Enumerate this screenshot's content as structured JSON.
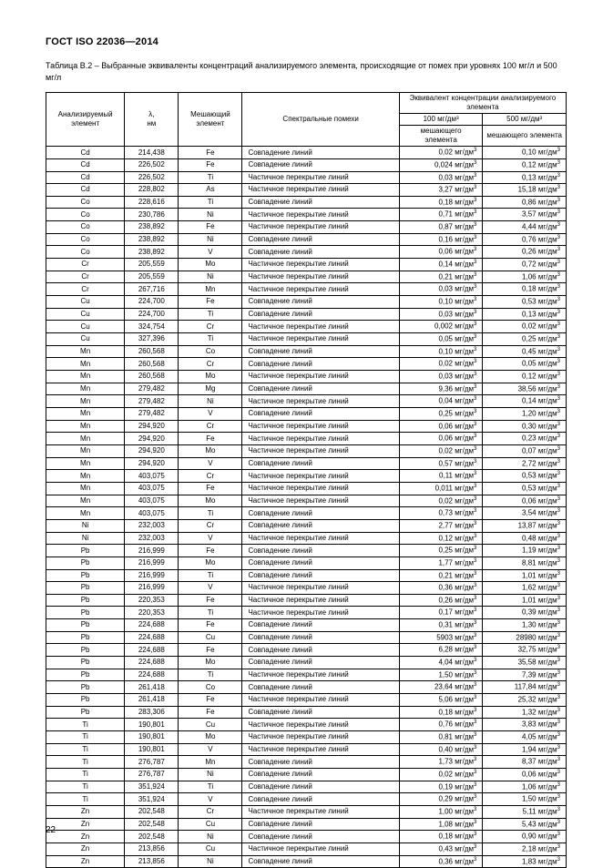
{
  "doc_code": "ГОСТ ISO 22036—2014",
  "caption": "Таблица В.2 – Выбранные эквиваленты концентраций анализируемого элемента, происходящие от помех при уровнях 100 мг/л и 500 мг/л",
  "page_number": "22",
  "header": {
    "col1": "Анализируемый элемент",
    "col2_l1": "λ,",
    "col2_l2": "нм",
    "col3": "Мешающий элемент",
    "col4": "Спектральные помехи",
    "eq_top": "Эквивалент концентрации анализируемого элемента",
    "eq_100_l1": "100 мг/дм³",
    "eq_100_l2": "мешающего элемента",
    "eq_500_l1": "500 мг/дм³",
    "eq_500_l2": "мешающего элемента"
  },
  "unit_html": "мг/дм<sup>3</sup>",
  "rows": [
    [
      "Cd",
      "214,438",
      "Fe",
      "Совпадение линий",
      "0,02",
      "0,10"
    ],
    [
      "Cd",
      "226,502",
      "Fe",
      "Совпадение линий",
      "0,024",
      "0,12"
    ],
    [
      "Cd",
      "226,502",
      "Ti",
      "Частичное перекрытие линий",
      "0,03",
      "0,13"
    ],
    [
      "Cd",
      "228,802",
      "As",
      "Частичное перекрытие линий",
      "3,27",
      "15,18"
    ],
    [
      "Co",
      "228,616",
      "Ti",
      "Совпадение линий",
      "0,18",
      "0,86"
    ],
    [
      "Co",
      "230,786",
      "Ni",
      "Частичное перекрытие линий",
      "0,71",
      "3,57"
    ],
    [
      "Co",
      "238,892",
      "Fe",
      "Частичное перекрытие линий",
      "0,87",
      "4,44"
    ],
    [
      "Co",
      "238,892",
      "Ni",
      "Совпадение линий",
      "0,16",
      "0,76"
    ],
    [
      "Co",
      "238,892",
      "V",
      "Совпадение линий",
      "0,06",
      "0,26"
    ],
    [
      "Cr",
      "205,559",
      "Mo",
      "Частичное перекрытие линий",
      "0,14",
      "0,72"
    ],
    [
      "Cr",
      "205,559",
      "Ni",
      "Частичное перекрытие линий",
      "0,21",
      "1,06"
    ],
    [
      "Cr",
      "267,716",
      "Mn",
      "Частичное перекрытие линий",
      "0,03",
      "0,18"
    ],
    [
      "Cu",
      "224,700",
      "Fe",
      "Совпадение линий",
      "0,10",
      "0,53"
    ],
    [
      "Cu",
      "224,700",
      "Ti",
      "Совпадение линий",
      "0,03",
      "0,13"
    ],
    [
      "Cu",
      "324,754",
      "Cr",
      "Частичное перекрытие линий",
      "0,002",
      "0,02"
    ],
    [
      "Cu",
      "327,396",
      "Ti",
      "Частичное перекрытие линий",
      "0,05",
      "0,25"
    ],
    [
      "Mn",
      "260,568",
      "Co",
      "Совпадение линий",
      "0,10",
      "0,45"
    ],
    [
      "Mn",
      "260,568",
      "Cr",
      "Совпадение линий",
      "0,02",
      "0,05"
    ],
    [
      "Mn",
      "260,568",
      "Mo",
      "Частичное перекрытие линий",
      "0,03",
      "0,12"
    ],
    [
      "Mn",
      "279,482",
      "Mg",
      "Совпадение линий",
      "9,36",
      "38,56"
    ],
    [
      "Mn",
      "279,482",
      "Ni",
      "Частичное перекрытие линий",
      "0,04",
      "0,14"
    ],
    [
      "Mn",
      "279,482",
      "V",
      "Совпадение линий",
      "0,25",
      "1,20"
    ],
    [
      "Mn",
      "294,920",
      "Cr",
      "Частичное перекрытие линий",
      "0,06",
      "0,30"
    ],
    [
      "Mn",
      "294,920",
      "Fe",
      "Частичное перекрытие линий",
      "0,06",
      "0,23"
    ],
    [
      "Mn",
      "294,920",
      "Mo",
      "Частичное перекрытие линий",
      "0,02",
      "0,07"
    ],
    [
      "Mn",
      "294,920",
      "V",
      "Совпадение линий",
      "0,57",
      "2,72"
    ],
    [
      "Mn",
      "403,075",
      "Cr",
      "Частичное перекрытие линий",
      "0,11",
      "0,53"
    ],
    [
      "Mn",
      "403,075",
      "Fe",
      "Частичное перекрытие линий",
      "0,011",
      "0,53"
    ],
    [
      "Mn",
      "403,075",
      "Mo",
      "Частичное перекрытие линий",
      "0,02",
      "0,06"
    ],
    [
      "Mn",
      "403,075",
      "Ti",
      "Совпадение линий",
      "0,73",
      "3,54"
    ],
    [
      "Ni",
      "232,003",
      "Cr",
      "Совпадение линий",
      "2,77",
      "13,87"
    ],
    [
      "Ni",
      "232,003",
      "V",
      "Частичное перекрытие линий",
      "0,12",
      "0,48"
    ],
    [
      "Pb",
      "216,999",
      "Fe",
      "Совпадение линий",
      "0,25",
      "1,19"
    ],
    [
      "Pb",
      "216,999",
      "Mo",
      "Совпадение линий",
      "1,77",
      "8,81"
    ],
    [
      "Pb",
      "216,999",
      "Ti",
      "Совпадение линий",
      "0,21",
      "1,01"
    ],
    [
      "Pb",
      "216,999",
      "V",
      "Частичное перекрытие линий",
      "0,36",
      "1,62"
    ],
    [
      "Pb",
      "220,353",
      "Fe",
      "Частичное перекрытие линий",
      "0,26",
      "1,01"
    ],
    [
      "Pb",
      "220,353",
      "Ti",
      "Частичное перекрытие линий",
      "0,17",
      "0,39"
    ],
    [
      "Pb",
      "224,688",
      "Fe",
      "Совпадение линий",
      "0,31",
      "1,30"
    ],
    [
      "Pb",
      "224,688",
      "Cu",
      "Совпадение линий",
      "5903",
      "28980"
    ],
    [
      "Pb",
      "224,688",
      "Fe",
      "Совпадение линий",
      "6,28",
      "32,75"
    ],
    [
      "Pb",
      "224,688",
      "Mo",
      "Совпадение линий",
      "4,04",
      "35,58"
    ],
    [
      "Pb",
      "224,688",
      "Ti",
      "Частичное перекрытие линий",
      "1,50",
      "7,39"
    ],
    [
      "Pb",
      "261,418",
      "Co",
      "Совпадение линий",
      "23,64",
      "117,84"
    ],
    [
      "Pb",
      "261,418",
      "Fe",
      "Частичное перекрытие линий",
      "5,06",
      "25,32"
    ],
    [
      "Pb",
      "283,306",
      "Fe",
      "Совпадение линий",
      "0,18",
      "1,32"
    ],
    [
      "Ti",
      "190,801",
      "Cu",
      "Частичное перекрытие линий",
      "0,76",
      "3,83"
    ],
    [
      "Ti",
      "190,801",
      "Mo",
      "Частичное перекрытие линий",
      "0,81",
      "4,05"
    ],
    [
      "Ti",
      "190,801",
      "V",
      "Частичное перекрытие линий",
      "0,40",
      "1,94"
    ],
    [
      "Ti",
      "276,787",
      "Mn",
      "Совпадение линий",
      "1,73",
      "8,37"
    ],
    [
      "Ti",
      "276,787",
      "Ni",
      "Совпадение линий",
      "0,02",
      "0,06"
    ],
    [
      "Ti",
      "351,924",
      "Ti",
      "Совпадение линий",
      "0,19",
      "1,06"
    ],
    [
      "Ti",
      "351,924",
      "V",
      "Совпадение линий",
      "0,29",
      "1,50"
    ],
    [
      "Zn",
      "202,548",
      "Cr",
      "Частичное перекрытие линий",
      "1,00",
      "5,11"
    ],
    [
      "Zn",
      "202,548",
      "Cu",
      "Совпадение линий",
      "1,08",
      "5,43"
    ],
    [
      "Zn",
      "202,548",
      "Ni",
      "Совпадение линий",
      "0,18",
      "0,90"
    ],
    [
      "Zn",
      "213,856",
      "Cu",
      "Частичное перекрытие линий",
      "0,43",
      "2,18"
    ],
    [
      "Zn",
      "213,856",
      "Ni",
      "Совпадение линий",
      "0,36",
      "1,83"
    ]
  ]
}
